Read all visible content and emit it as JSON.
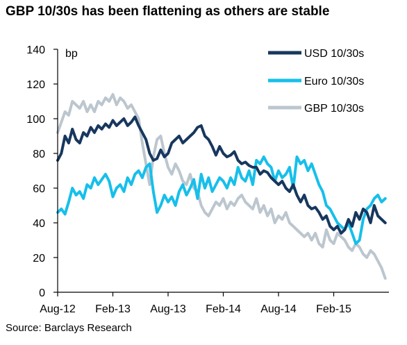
{
  "title": "GBP 10/30s has been flattening as others are stable",
  "source": "Source: Barclays Research",
  "colors": {
    "usd": "#17375e",
    "euro": "#17bfea",
    "gbp": "#bcc6cf",
    "axis": "#000000"
  },
  "chart_data": {
    "type": "line",
    "title": "GBP 10/30s has been flattening as others are stable",
    "ylabel": "bp",
    "ylim": [
      0,
      140
    ],
    "yticks": [
      0,
      20,
      40,
      60,
      80,
      100,
      120,
      140
    ],
    "xlim": [
      0,
      36
    ],
    "xticks": [
      {
        "label": "Aug-12",
        "x": 0
      },
      {
        "label": "Feb-13",
        "x": 6
      },
      {
        "label": "Aug-13",
        "x": 12
      },
      {
        "label": "Feb-14",
        "x": 18
      },
      {
        "label": "Aug-14",
        "x": 24
      },
      {
        "label": "Feb-15",
        "x": 30
      }
    ],
    "legend": "top-right",
    "series": [
      {
        "name": "USD 10/30s",
        "color": "#17375e",
        "x": [
          0,
          0.4,
          0.8,
          1.2,
          1.6,
          2.0,
          2.4,
          2.8,
          3.2,
          3.6,
          4.0,
          4.4,
          4.8,
          5.2,
          5.6,
          6.0,
          6.4,
          6.8,
          7.2,
          7.6,
          8.0,
          8.4,
          8.8,
          9.2,
          9.6,
          10.0,
          10.4,
          10.8,
          11.2,
          11.6,
          12.0,
          12.4,
          12.8,
          13.2,
          13.6,
          14.0,
          14.4,
          14.8,
          15.2,
          15.6,
          16.0,
          16.4,
          16.8,
          17.2,
          17.6,
          18.0,
          18.4,
          18.8,
          19.2,
          19.6,
          20.0,
          20.4,
          20.8,
          21.2,
          21.6,
          22.0,
          22.4,
          22.8,
          23.2,
          23.6,
          24.0,
          24.4,
          24.8,
          25.2,
          25.6,
          26.0,
          26.4,
          26.8,
          27.2,
          27.6,
          28.0,
          28.4,
          28.8,
          29.2,
          29.6,
          30.0,
          30.4,
          30.8,
          31.2,
          31.6,
          32.0,
          32.4,
          32.8,
          33.2,
          33.6,
          34.0,
          34.4,
          34.8,
          35.2,
          35.6
        ],
        "y": [
          76,
          80,
          90,
          86,
          94,
          88,
          86,
          92,
          90,
          95,
          92,
          96,
          94,
          97,
          95,
          99,
          96,
          98,
          100,
          96,
          98,
          101,
          96,
          92,
          88,
          80,
          76,
          77,
          82,
          78,
          80,
          86,
          88,
          90,
          86,
          88,
          90,
          92,
          95,
          96,
          90,
          88,
          84,
          79,
          84,
          80,
          78,
          79,
          81,
          76,
          74,
          75,
          73,
          72,
          72,
          68,
          70,
          69,
          66,
          64,
          62,
          64,
          60,
          58,
          62,
          56,
          52,
          56,
          50,
          48,
          49,
          46,
          42,
          44,
          38,
          36,
          38,
          34,
          36,
          42,
          38,
          46,
          42,
          48,
          46,
          40,
          50,
          44,
          42,
          40
        ]
      },
      {
        "name": "Euro 10/30s",
        "color": "#17bfea",
        "x": [
          0,
          0.4,
          0.8,
          1.2,
          1.6,
          2.0,
          2.4,
          2.8,
          3.2,
          3.6,
          4.0,
          4.4,
          4.8,
          5.2,
          5.6,
          6.0,
          6.4,
          6.8,
          7.2,
          7.6,
          8.0,
          8.4,
          8.8,
          9.2,
          9.6,
          10.0,
          10.4,
          10.8,
          11.2,
          11.6,
          12.0,
          12.4,
          12.8,
          13.2,
          13.6,
          14.0,
          14.4,
          14.8,
          15.2,
          15.6,
          16.0,
          16.4,
          16.8,
          17.2,
          17.6,
          18.0,
          18.4,
          18.8,
          19.2,
          19.6,
          20.0,
          20.4,
          20.8,
          21.2,
          21.6,
          22.0,
          22.4,
          22.8,
          23.2,
          23.6,
          24.0,
          24.4,
          24.8,
          25.2,
          25.6,
          26.0,
          26.4,
          26.8,
          27.2,
          27.6,
          28.0,
          28.4,
          28.8,
          29.2,
          29.6,
          30.0,
          30.4,
          30.8,
          31.2,
          31.6,
          32.0,
          32.4,
          32.8,
          33.2,
          33.6,
          34.0,
          34.4,
          34.8,
          35.2,
          35.6
        ],
        "y": [
          46,
          48,
          45,
          52,
          60,
          56,
          58,
          54,
          62,
          60,
          66,
          62,
          65,
          68,
          64,
          55,
          60,
          62,
          58,
          66,
          62,
          68,
          70,
          66,
          72,
          74,
          58,
          46,
          50,
          56,
          52,
          55,
          50,
          58,
          62,
          56,
          60,
          65,
          54,
          68,
          60,
          66,
          58,
          62,
          66,
          64,
          60,
          66,
          62,
          72,
          66,
          64,
          70,
          62,
          76,
          74,
          78,
          74,
          72,
          64,
          70,
          66,
          68,
          72,
          60,
          78,
          74,
          76,
          70,
          74,
          68,
          62,
          58,
          50,
          48,
          44,
          40,
          38,
          36,
          40,
          34,
          28,
          30,
          42,
          48,
          50,
          54,
          56,
          52,
          54
        ]
      },
      {
        "name": "GBP 10/30s",
        "color": "#bcc6cf",
        "x": [
          0,
          0.4,
          0.8,
          1.2,
          1.6,
          2.0,
          2.4,
          2.8,
          3.2,
          3.6,
          4.0,
          4.4,
          4.8,
          5.2,
          5.6,
          6.0,
          6.4,
          6.8,
          7.2,
          7.6,
          8.0,
          8.4,
          8.8,
          9.2,
          9.6,
          10.0,
          10.4,
          10.8,
          11.2,
          11.6,
          12.0,
          12.4,
          12.8,
          13.2,
          13.6,
          14.0,
          14.4,
          14.8,
          15.2,
          15.6,
          16.0,
          16.4,
          16.8,
          17.2,
          17.6,
          18.0,
          18.4,
          18.8,
          19.2,
          19.6,
          20.0,
          20.4,
          20.8,
          21.2,
          21.6,
          22.0,
          22.4,
          22.8,
          23.2,
          23.6,
          24.0,
          24.4,
          24.8,
          25.2,
          25.6,
          26.0,
          26.4,
          26.8,
          27.2,
          27.6,
          28.0,
          28.4,
          28.8,
          29.2,
          29.6,
          30.0,
          30.4,
          30.8,
          31.2,
          31.6,
          32.0,
          32.4,
          32.8,
          33.2,
          33.6,
          34.0,
          34.4,
          34.8,
          35.2,
          35.6
        ],
        "y": [
          92,
          98,
          104,
          102,
          110,
          108,
          106,
          110,
          104,
          108,
          104,
          110,
          108,
          112,
          110,
          114,
          108,
          112,
          110,
          106,
          108,
          104,
          100,
          86,
          74,
          62,
          78,
          88,
          90,
          80,
          72,
          68,
          74,
          70,
          64,
          62,
          68,
          60,
          58,
          50,
          46,
          44,
          48,
          52,
          50,
          54,
          48,
          52,
          50,
          54,
          56,
          52,
          50,
          48,
          54,
          46,
          50,
          44,
          48,
          40,
          44,
          42,
          46,
          40,
          38,
          36,
          34,
          32,
          34,
          30,
          34,
          28,
          26,
          36,
          30,
          28,
          34,
          32,
          30,
          26,
          24,
          28,
          26,
          22,
          20,
          24,
          22,
          18,
          14,
          8
        ]
      }
    ]
  }
}
